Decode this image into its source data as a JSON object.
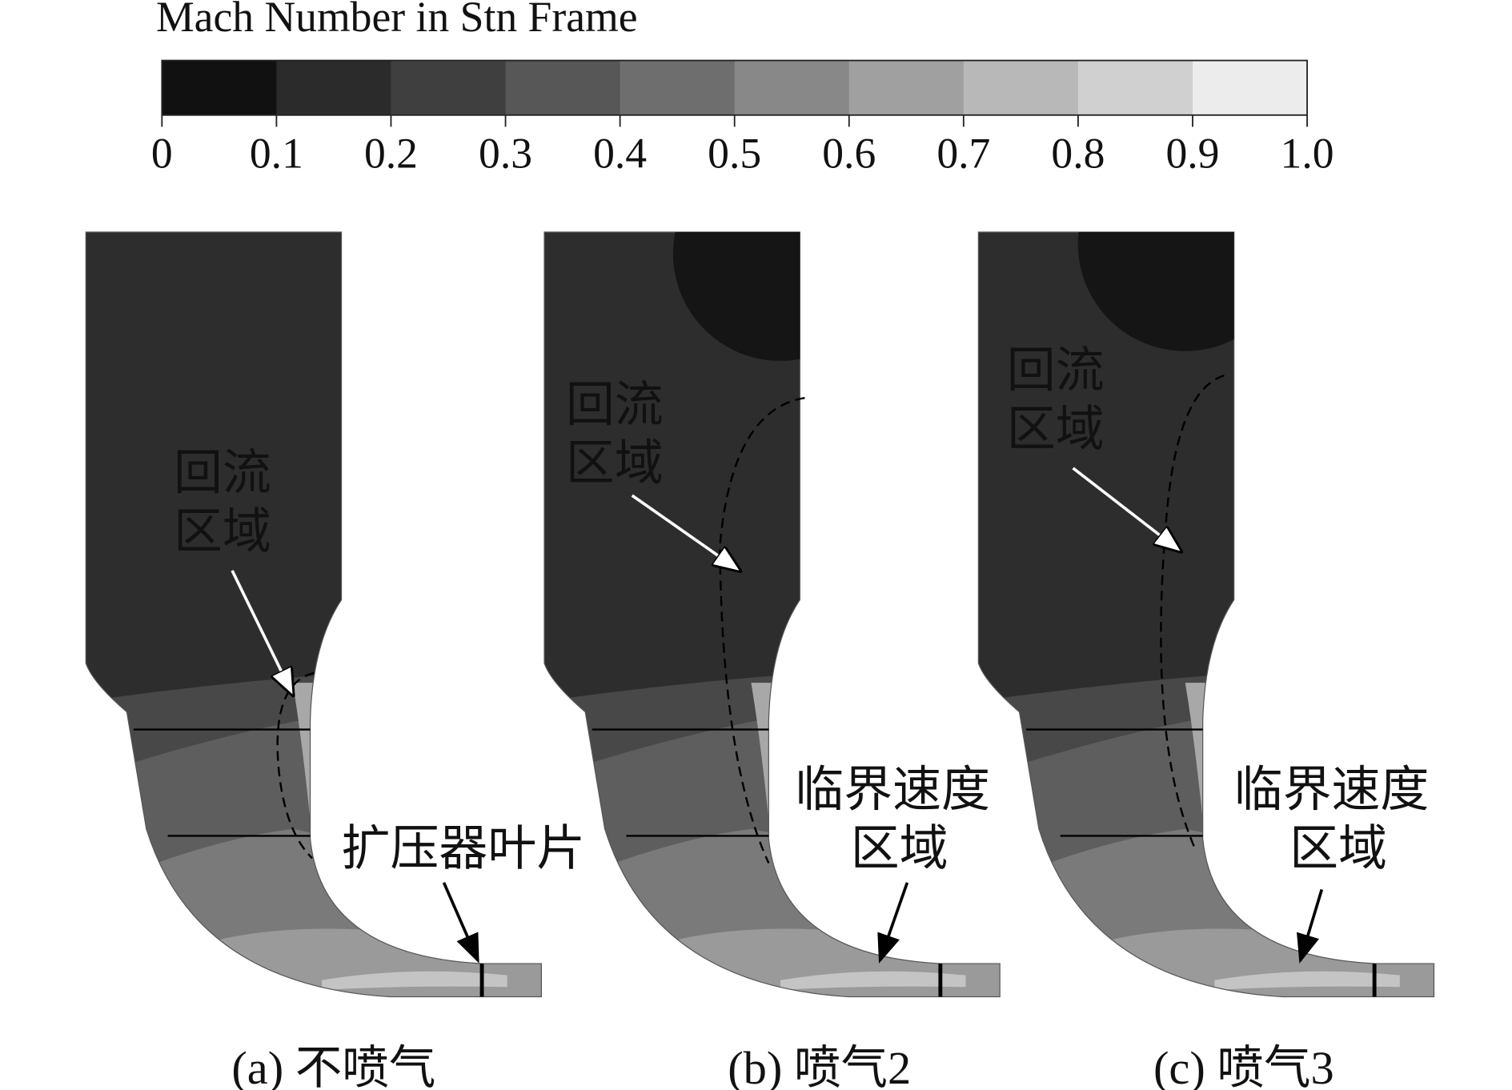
{
  "colorbar": {
    "title": "Mach Number in Stn Frame",
    "lim": [
      0,
      1
    ],
    "ticks": [
      0,
      0.1,
      0.2,
      0.3,
      0.4,
      0.5,
      0.6,
      0.7,
      0.8,
      0.9,
      {
        "value": 1,
        "label": "1.0"
      }
    ],
    "colors": [
      "#111111",
      "#2b2b2b",
      "#3f3f3f",
      "#575757",
      "#6e6e6e",
      "#888888",
      "#a0a0a0",
      "#b8b8b8",
      "#d0d0d0",
      "#ececec"
    ]
  },
  "panels": [
    {
      "caption": "(a) 不喷气",
      "recirculation": [
        "回流",
        "区域"
      ],
      "blade": "扩压器叶片"
    },
    {
      "caption": "(b) 喷气2",
      "recirculation": [
        "回流",
        "区域"
      ],
      "critical": [
        "临界速度",
        "区域"
      ]
    },
    {
      "caption": "(c) 喷气3",
      "recirculation": [
        "回流",
        "区域"
      ],
      "critical": [
        "临界速度",
        "区域"
      ]
    }
  ]
}
